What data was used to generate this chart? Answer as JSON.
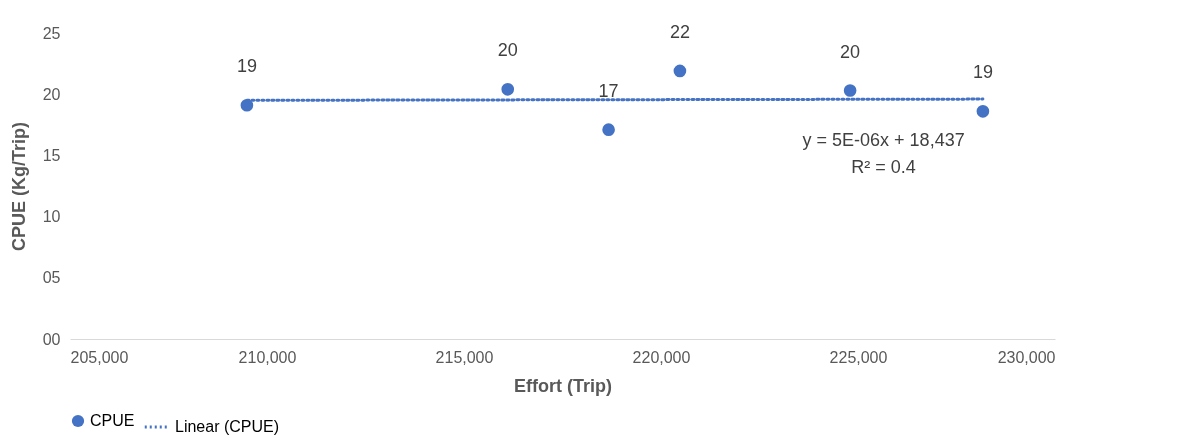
{
  "chart_data": {
    "type": "scatter",
    "xlabel": "Effort (Trip)",
    "ylabel": "CPUE (Kg/Trip)",
    "x": [
      209490,
      216110,
      218670,
      220480,
      224800,
      228170
    ],
    "series": [
      {
        "name": "CPUE",
        "color": "#4472c4",
        "marker": "circle",
        "values": [
          19.1,
          20.4,
          17.1,
          21.9,
          20.3,
          18.6
        ],
        "value_labels": [
          "19",
          "20",
          "17",
          "22",
          "20",
          "19"
        ]
      },
      {
        "name": "Linear (CPUE)",
        "type": "line",
        "color": "#4472c4",
        "x": [
          209490,
          228170
        ],
        "values": [
          19.5,
          19.6
        ],
        "line_style": "dotted"
      }
    ],
    "xlim": [
      205000,
      230000
    ],
    "xticks": [
      {
        "value": 205000,
        "label": "205,000"
      },
      {
        "value": 210000,
        "label": "210,000"
      },
      {
        "value": 215000,
        "label": "215,000"
      },
      {
        "value": 220000,
        "label": "220,000"
      },
      {
        "value": 225000,
        "label": "225,000"
      },
      {
        "value": 230000,
        "label": "230,000"
      }
    ],
    "ylim": [
      0,
      25
    ],
    "yticks": [
      {
        "value": 0,
        "label": "00"
      },
      {
        "value": 5,
        "label": "05"
      },
      10,
      15,
      20,
      25
    ],
    "legend": "bottom",
    "annotations": [
      "y = 5E-06x + 18,437",
      "R² = 0.4"
    ]
  }
}
